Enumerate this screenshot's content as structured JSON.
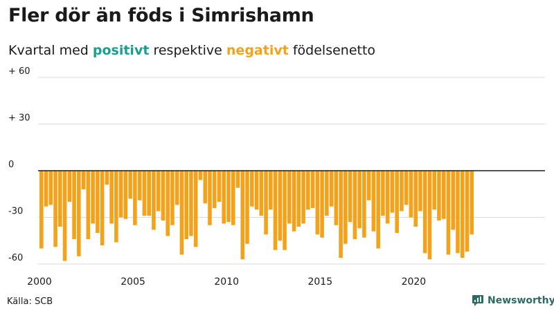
{
  "header": {
    "title": "Fler dör än föds i Simrishamn",
    "subtitle_prefix": "Kvartal med ",
    "subtitle_positive": "positivt",
    "subtitle_middle": " respektive ",
    "subtitle_negative": "negativt",
    "subtitle_suffix": " födelsenetto"
  },
  "footer": {
    "source": "Källa: SCB",
    "brand": "Newsworthy"
  },
  "colors": {
    "positive": "#1a9e8f",
    "negative": "#f5a21b",
    "grid": "#d9d9d9",
    "axis": "#1a1a1a",
    "brand": "#2b6b64"
  },
  "chart_data": {
    "type": "bar",
    "title": "Fler dör än föds i Simrishamn",
    "subtitle": "Kvartal med positivt respektive negativt födelsenetto",
    "xlabel": "",
    "ylabel": "",
    "x_start": 2000,
    "periods_per_year": 4,
    "ylim": [
      -63,
      60
    ],
    "y_ticks": [
      {
        "value": 60,
        "label": "+ 60"
      },
      {
        "value": 30,
        "label": "+ 30"
      },
      {
        "value": 0,
        "label": "0"
      },
      {
        "value": -30,
        "label": "-30"
      },
      {
        "value": -60,
        "label": "-60"
      }
    ],
    "x_ticks": [
      {
        "value": 2000,
        "label": "2000"
      },
      {
        "value": 2005,
        "label": "2005"
      },
      {
        "value": 2010,
        "label": "2010"
      },
      {
        "value": 2015,
        "label": "2015"
      },
      {
        "value": 2020,
        "label": "2020"
      }
    ],
    "grid": true,
    "legend": "none",
    "values": [
      -50,
      -23,
      -22,
      -49,
      -36,
      -58,
      -20,
      -44,
      -55,
      -12,
      -44,
      -34,
      -40,
      -48,
      -9,
      -34,
      -46,
      -30,
      -31,
      -18,
      -35,
      -19,
      -29,
      -29,
      -38,
      -26,
      -32,
      -42,
      -35,
      -22,
      -54,
      -44,
      -42,
      -49,
      -6,
      -21,
      -35,
      -24,
      -20,
      -34,
      -33,
      -35,
      -11,
      -57,
      -47,
      -23,
      -25,
      -29,
      -41,
      -25,
      -51,
      -45,
      -51,
      -34,
      -39,
      -36,
      -34,
      -25,
      -24,
      -41,
      -43,
      -29,
      -23,
      -35,
      -56,
      -47,
      -33,
      -44,
      -37,
      -43,
      -19,
      -39,
      -50,
      -29,
      -34,
      -27,
      -40,
      -26,
      -22,
      -30,
      -36,
      -26,
      -53,
      -57,
      -25,
      -32,
      -31,
      -54,
      -38,
      -53,
      -56,
      -52,
      -41
    ]
  }
}
